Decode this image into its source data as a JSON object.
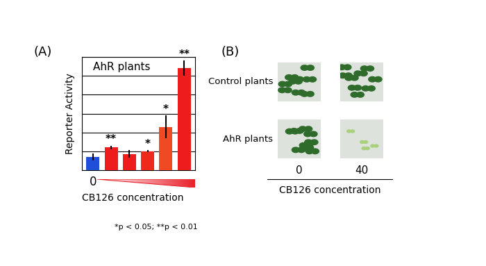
{
  "chart_data": {
    "type": "bar",
    "panel_label": "(A)",
    "title": "AhR plants",
    "categories": [
      "0",
      null,
      null,
      null,
      null,
      null
    ],
    "values": [
      0.7,
      1.2,
      0.85,
      1.0,
      2.3,
      5.4
    ],
    "errors": [
      0.2,
      0.1,
      0.2,
      0.05,
      0.6,
      0.4
    ],
    "annotations": [
      null,
      "**",
      null,
      "*",
      "*",
      "**"
    ],
    "colors": [
      "#1f4fd8",
      "#ee1c1c",
      "#ee1c1c",
      "#ee2a1c",
      "#f04a22",
      "#ee1c1c"
    ],
    "ylabel": "Reporter Activity",
    "xlabel": "CB126 concentration",
    "ylim": [
      0,
      6
    ],
    "yticks": [
      0,
      1,
      2,
      3,
      4,
      5,
      6
    ],
    "grid": true,
    "tick_labels": "x",
    "note": "*p < 0.05; **p < 0.01"
  },
  "panel_b": {
    "panel_label": "(B)",
    "rows": [
      "Control plants",
      "AhR plants"
    ],
    "columns": [
      "0",
      "40"
    ],
    "xlabel": "CB126 concentration"
  }
}
